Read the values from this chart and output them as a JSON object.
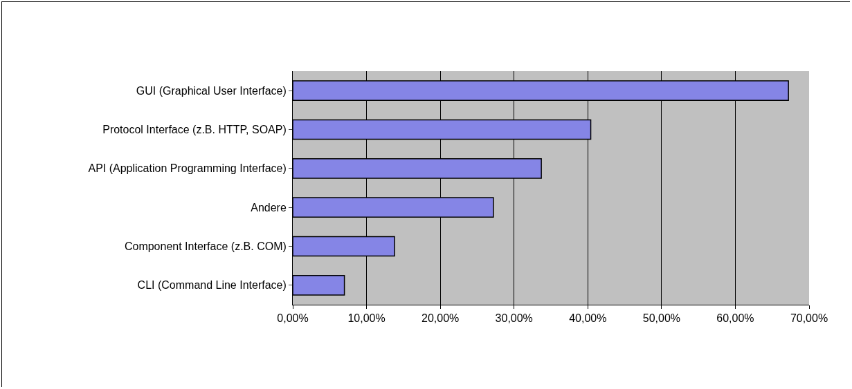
{
  "chart_data": {
    "type": "bar",
    "orientation": "horizontal",
    "categories": [
      "GUI (Graphical User Interface)",
      "Protocol Interface (z.B. HTTP, SOAP)",
      "API (Application Programming Interface)",
      "Andere",
      "Component Interface (z.B. COM)",
      "CLI (Command Line Interface)"
    ],
    "values": [
      67.2,
      40.4,
      33.7,
      27.2,
      13.8,
      7.0
    ],
    "color": "#8585e6",
    "xlim": [
      0,
      70
    ],
    "xticks": [
      {
        "value": 0,
        "label": "0,00%"
      },
      {
        "value": 10,
        "label": "10,00%"
      },
      {
        "value": 20,
        "label": "20,00%"
      },
      {
        "value": 30,
        "label": "30,00%"
      },
      {
        "value": 40,
        "label": "40,00%"
      },
      {
        "value": 50,
        "label": "50,00%"
      },
      {
        "value": 60,
        "label": "60,00%"
      },
      {
        "value": 70,
        "label": "70,00%"
      }
    ],
    "grid": "x"
  }
}
